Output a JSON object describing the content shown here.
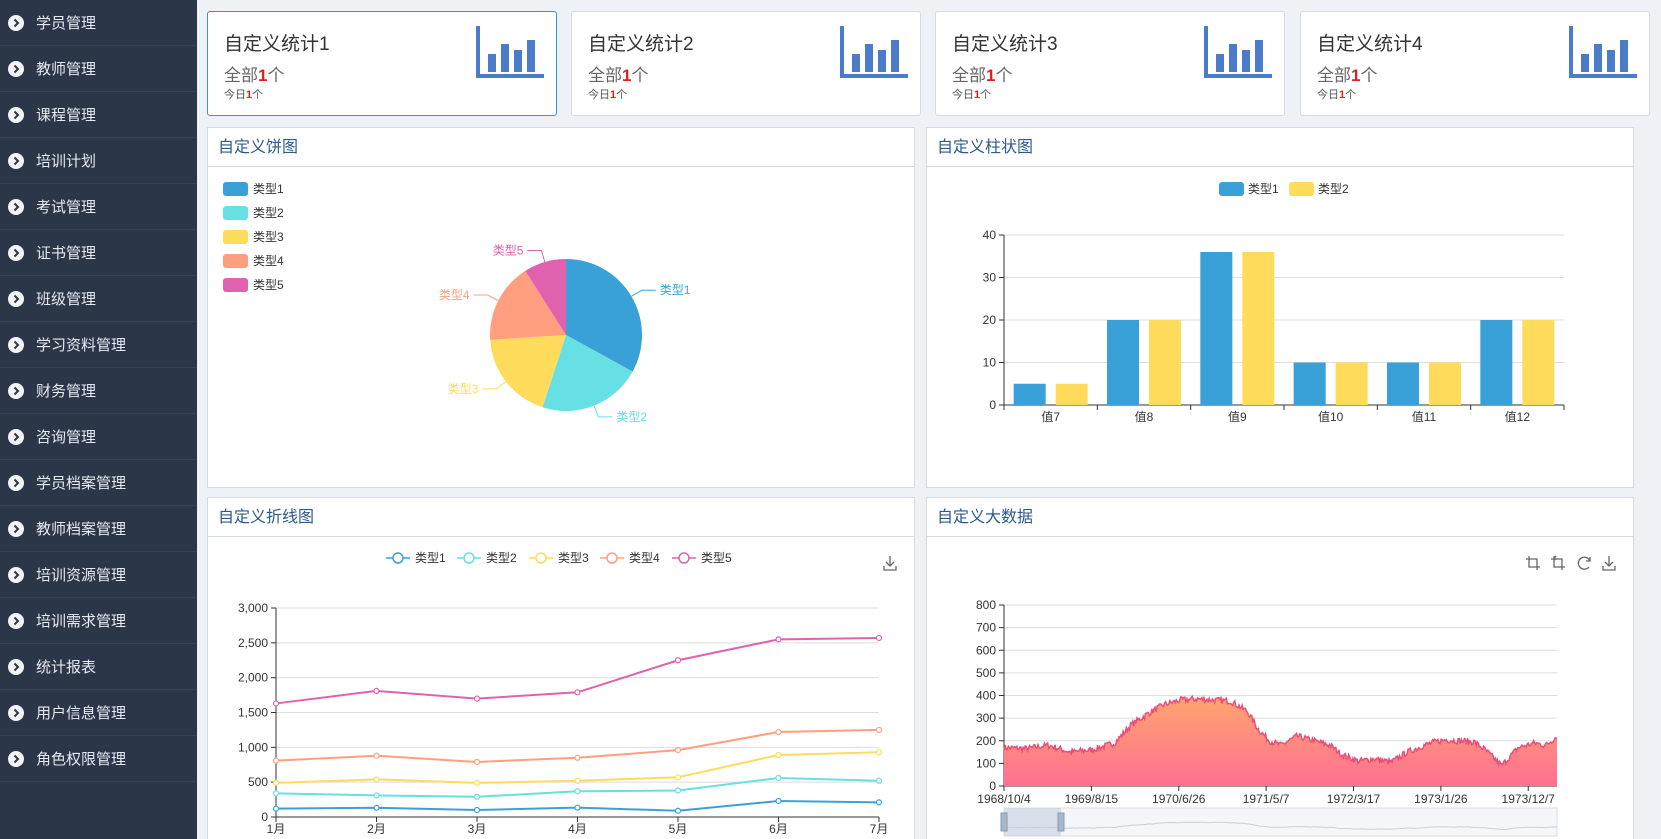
{
  "sidebar": {
    "items": [
      {
        "label": "学员管理"
      },
      {
        "label": "教师管理"
      },
      {
        "label": "课程管理"
      },
      {
        "label": "培训计划"
      },
      {
        "label": "考试管理"
      },
      {
        "label": "证书管理"
      },
      {
        "label": "班级管理"
      },
      {
        "label": "学习资料管理"
      },
      {
        "label": "财务管理"
      },
      {
        "label": "咨询管理"
      },
      {
        "label": "学员档案管理"
      },
      {
        "label": "教师档案管理"
      },
      {
        "label": "培训资源管理"
      },
      {
        "label": "培训需求管理"
      },
      {
        "label": "统计报表"
      },
      {
        "label": "用户信息管理"
      },
      {
        "label": "角色权限管理"
      }
    ]
  },
  "stats": [
    {
      "title": "自定义统计1",
      "total_prefix": "全部",
      "total_value": "1",
      "total_suffix": "个",
      "today_prefix": "今日",
      "today_value": "1",
      "today_suffix": "个"
    },
    {
      "title": "自定义统计2",
      "total_prefix": "全部",
      "total_value": "1",
      "total_suffix": "个",
      "today_prefix": "今日",
      "today_value": "1",
      "today_suffix": "个"
    },
    {
      "title": "自定义统计3",
      "total_prefix": "全部",
      "total_value": "1",
      "total_suffix": "个",
      "today_prefix": "今日",
      "today_value": "1",
      "today_suffix": "个"
    },
    {
      "title": "自定义统计4",
      "total_prefix": "全部",
      "total_value": "1",
      "total_suffix": "个",
      "today_prefix": "今日",
      "today_value": "1",
      "today_suffix": "个"
    }
  ],
  "panels": {
    "pie": {
      "title": "自定义饼图"
    },
    "bar": {
      "title": "自定义柱状图"
    },
    "line": {
      "title": "自定义折线图"
    },
    "bigdata": {
      "title": "自定义大数据"
    }
  },
  "colors": {
    "series": [
      "#3aa1d8",
      "#67e0e3",
      "#ffdb5c",
      "#ff9f7f",
      "#e062ae"
    ],
    "area_line": "#e8507a",
    "area_top": "#ffa56e",
    "area_bottom": "#ff6f91"
  },
  "chart_data": [
    {
      "type": "pie",
      "legend_position": "top-left",
      "slices": [
        {
          "name": "类型1",
          "value": 33
        },
        {
          "name": "类型2",
          "value": 22
        },
        {
          "name": "类型3",
          "value": 19
        },
        {
          "name": "类型4",
          "value": 17
        },
        {
          "name": "类型5",
          "value": 9
        }
      ]
    },
    {
      "type": "bar",
      "legend_position": "top-center",
      "categories": [
        "值7",
        "值8",
        "值9",
        "值10",
        "值11",
        "值12"
      ],
      "series": [
        {
          "name": "类型1",
          "values": [
            5,
            20,
            36,
            10,
            10,
            20
          ]
        },
        {
          "name": "类型2",
          "values": [
            5,
            20,
            36,
            10,
            10,
            20
          ]
        }
      ],
      "ylim": [
        0,
        40
      ],
      "yticks": [
        0,
        10,
        20,
        30,
        40
      ],
      "grid": true
    },
    {
      "type": "line",
      "legend_position": "top-center",
      "categories": [
        "1月",
        "2月",
        "3月",
        "4月",
        "5月",
        "6月",
        "7月"
      ],
      "series": [
        {
          "name": "类型1",
          "values": [
            120,
            132,
            101,
            134,
            90,
            230,
            210
          ]
        },
        {
          "name": "类型2",
          "values": [
            340,
            310,
            290,
            370,
            380,
            560,
            520
          ]
        },
        {
          "name": "类型3",
          "values": [
            490,
            540,
            490,
            520,
            570,
            890,
            930
          ]
        },
        {
          "name": "类型4",
          "values": [
            810,
            880,
            790,
            850,
            960,
            1220,
            1250
          ]
        },
        {
          "name": "类型5",
          "values": [
            1630,
            1810,
            1700,
            1790,
            2250,
            2550,
            2570
          ]
        }
      ],
      "ylim": [
        0,
        3000
      ],
      "yticks": [
        "0",
        "500",
        "1,000",
        "1,500",
        "2,000",
        "2,500",
        "3,000"
      ],
      "grid": true,
      "toolbox": [
        "download-icon"
      ]
    },
    {
      "type": "area",
      "x_start": "1968/10/4",
      "x_end": "1974/4/25",
      "xticks": [
        "1968/10/4",
        "1969/8/15",
        "1970/6/26",
        "1971/5/7",
        "1972/3/17",
        "1973/1/26",
        "1973/12/7"
      ],
      "ylim": [
        0,
        800
      ],
      "yticks": [
        0,
        100,
        200,
        300,
        400,
        500,
        600,
        700,
        800
      ],
      "grid": true,
      "keypoints": [
        [
          0,
          170
        ],
        [
          0.04,
          165
        ],
        [
          0.08,
          180
        ],
        [
          0.12,
          150
        ],
        [
          0.16,
          160
        ],
        [
          0.2,
          190
        ],
        [
          0.23,
          270
        ],
        [
          0.26,
          320
        ],
        [
          0.29,
          360
        ],
        [
          0.32,
          380
        ],
        [
          0.35,
          385
        ],
        [
          0.38,
          380
        ],
        [
          0.41,
          375
        ],
        [
          0.44,
          330
        ],
        [
          0.46,
          250
        ],
        [
          0.48,
          200
        ],
        [
          0.5,
          180
        ],
        [
          0.53,
          220
        ],
        [
          0.56,
          200
        ],
        [
          0.59,
          180
        ],
        [
          0.61,
          140
        ],
        [
          0.64,
          110
        ],
        [
          0.67,
          120
        ],
        [
          0.7,
          105
        ],
        [
          0.73,
          150
        ],
        [
          0.76,
          180
        ],
        [
          0.78,
          195
        ],
        [
          0.8,
          205
        ],
        [
          0.82,
          200
        ],
        [
          0.85,
          195
        ],
        [
          0.87,
          160
        ],
        [
          0.9,
          90
        ],
        [
          0.93,
          170
        ],
        [
          0.96,
          190
        ],
        [
          0.98,
          180
        ],
        [
          1.0,
          220
        ]
      ],
      "toolbox": [
        "zoom-icon",
        "zoom-reset-icon",
        "restore-icon",
        "download-icon"
      ]
    }
  ]
}
